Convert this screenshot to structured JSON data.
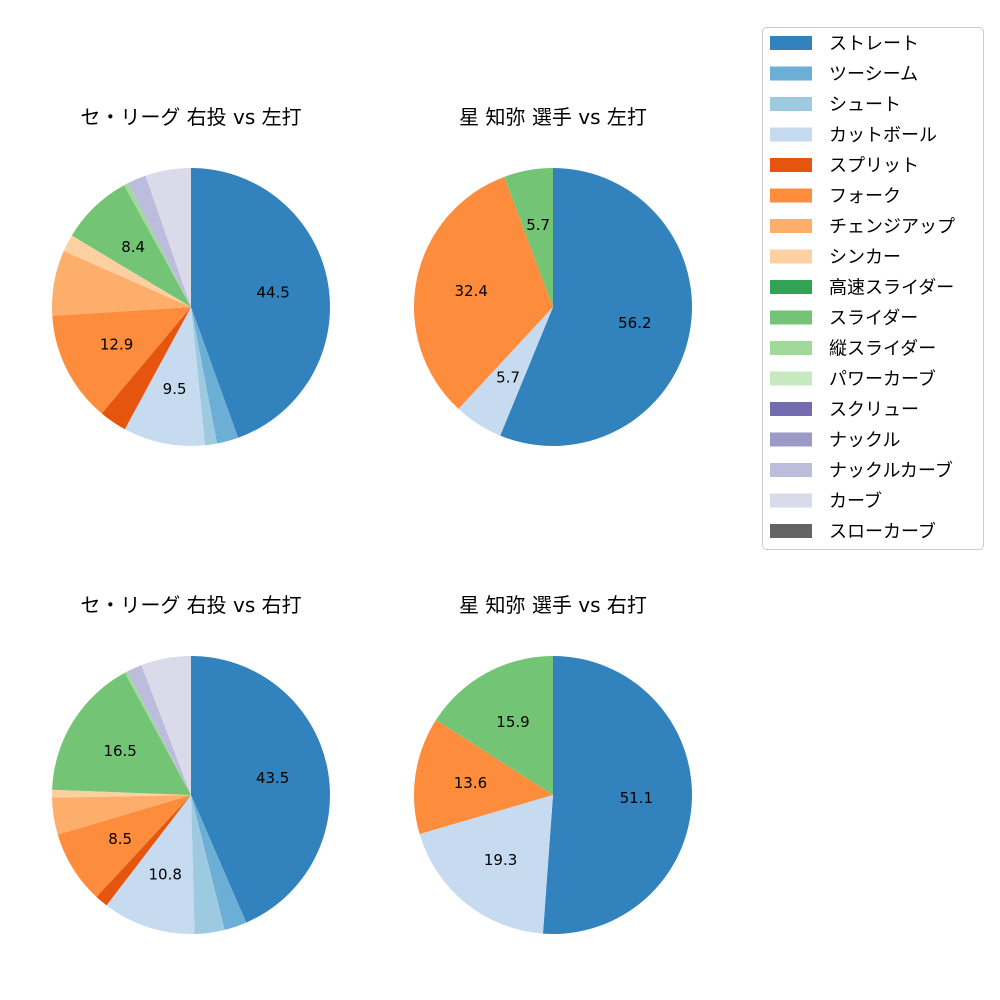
{
  "chart_data": [
    {
      "type": "pie",
      "title": "セ・リーグ 右投 vs 左打",
      "categories": [
        "ストレート",
        "ツーシーム",
        "シュート",
        "カットボール",
        "スプリット",
        "フォーク",
        "チェンジアップ",
        "シンカー",
        "スライダー",
        "縦スライダー",
        "ナックルカーブ",
        "カーブ"
      ],
      "values": [
        44.5,
        2.5,
        1.4,
        9.5,
        3.2,
        12.9,
        7.6,
        2.0,
        8.4,
        0.5,
        2.2,
        5.3
      ],
      "labels": [
        "44.5",
        "",
        "",
        "9.5",
        "",
        "12.9",
        "",
        "",
        "8.4",
        "",
        "",
        ""
      ]
    },
    {
      "type": "pie",
      "title": "星 知弥 選手 vs 左打",
      "categories": [
        "ストレート",
        "カットボール",
        "フォーク",
        "スライダー"
      ],
      "values": [
        56.2,
        5.7,
        32.4,
        5.7
      ],
      "labels": [
        "56.2",
        "5.7",
        "32.4",
        "5.7"
      ]
    },
    {
      "type": "pie",
      "title": "セ・リーグ 右投 vs 右打",
      "categories": [
        "ストレート",
        "ツーシーム",
        "シュート",
        "カットボール",
        "スプリット",
        "フォーク",
        "チェンジアップ",
        "シンカー",
        "スライダー",
        "縦スライダー",
        "ナックルカーブ",
        "カーブ"
      ],
      "values": [
        43.5,
        2.6,
        3.5,
        10.8,
        1.5,
        8.5,
        4.3,
        0.9,
        16.5,
        0.3,
        1.8,
        5.8
      ],
      "labels": [
        "43.5",
        "",
        "",
        "10.8",
        "",
        "8.5",
        "",
        "",
        "16.5",
        "",
        "",
        ""
      ]
    },
    {
      "type": "pie",
      "title": "星 知弥 選手 vs 右打",
      "categories": [
        "ストレート",
        "カットボール",
        "フォーク",
        "スライダー"
      ],
      "values": [
        51.1,
        19.3,
        13.6,
        15.9
      ],
      "labels": [
        "51.1",
        "19.3",
        "13.6",
        "15.9"
      ]
    }
  ],
  "legend": {
    "placement": "top-right",
    "items": [
      {
        "label": "ストレート",
        "color": "#3182bd"
      },
      {
        "label": "ツーシーム",
        "color": "#6baed6"
      },
      {
        "label": "シュート",
        "color": "#9ecae1"
      },
      {
        "label": "カットボール",
        "color": "#c6dbef"
      },
      {
        "label": "スプリット",
        "color": "#e6550d"
      },
      {
        "label": "フォーク",
        "color": "#fd8d3c"
      },
      {
        "label": "チェンジアップ",
        "color": "#fdae6b"
      },
      {
        "label": "シンカー",
        "color": "#fdd0a2"
      },
      {
        "label": "高速スライダー",
        "color": "#31a354"
      },
      {
        "label": "スライダー",
        "color": "#74c476"
      },
      {
        "label": "縦スライダー",
        "color": "#a1d99b"
      },
      {
        "label": "パワーカーブ",
        "color": "#c7e9c0"
      },
      {
        "label": "スクリュー",
        "color": "#756bb1"
      },
      {
        "label": "ナックル",
        "color": "#9e9ac8"
      },
      {
        "label": "ナックルカーブ",
        "color": "#bcbddc"
      },
      {
        "label": "カーブ",
        "color": "#dadaeb"
      },
      {
        "label": "スローカーブ",
        "color": "#636363"
      }
    ]
  }
}
